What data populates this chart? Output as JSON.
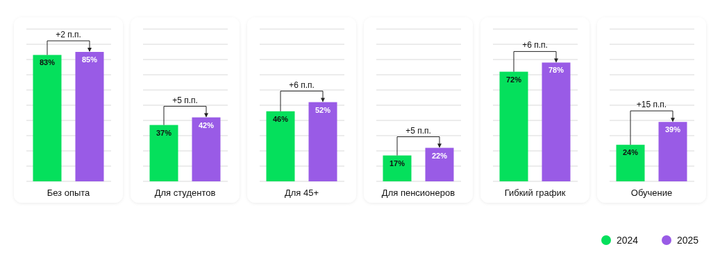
{
  "chart_data": {
    "type": "bar",
    "categories": [
      "Без опыта",
      "Для студентов",
      "Для 45+",
      "Для пенсионеров",
      "Гибкий график",
      "Обучение"
    ],
    "series": [
      {
        "name": "2024",
        "color": "#05e05c",
        "values": [
          83,
          37,
          46,
          17,
          72,
          24
        ],
        "value_labels": [
          "83%",
          "37%",
          "46%",
          "17%",
          "72%",
          "24%"
        ]
      },
      {
        "name": "2025",
        "color": "#995be6",
        "values": [
          85,
          42,
          52,
          22,
          78,
          39
        ],
        "value_labels": [
          "85%",
          "42%",
          "52%",
          "22%",
          "78%",
          "39%"
        ]
      }
    ],
    "grid": true,
    "legend": "bottom right",
    "tick_labels": "x",
    "annotations": [
      "+2 п.п.",
      "+5 п.п.",
      "+6 п.п.",
      "+5 п.п.",
      "+6 п.п.",
      "+15 п.п."
    ]
  }
}
